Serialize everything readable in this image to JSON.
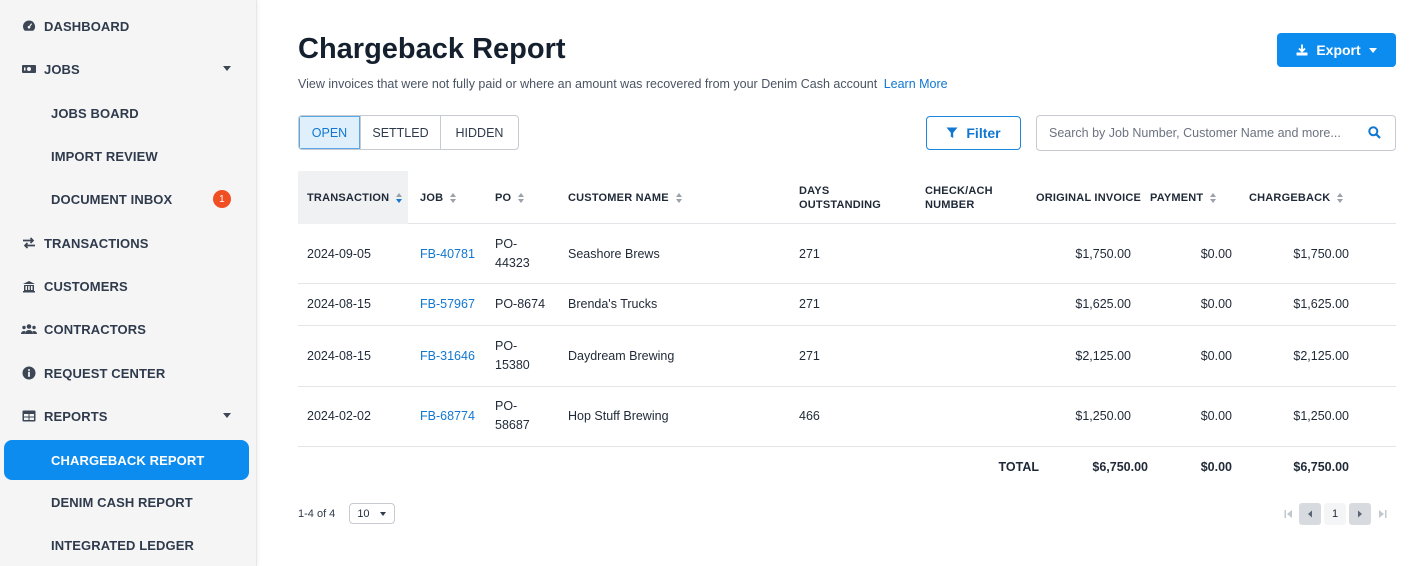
{
  "sidebar": {
    "items": [
      {
        "label": "DASHBOARD",
        "icon": "dashboard-icon"
      },
      {
        "label": "JOBS",
        "icon": "jobs-icon",
        "expandable": true
      },
      {
        "label": "JOBS BOARD"
      },
      {
        "label": "IMPORT REVIEW"
      },
      {
        "label": "DOCUMENT INBOX",
        "badge": "1"
      },
      {
        "label": "TRANSACTIONS",
        "icon": "transactions-icon"
      },
      {
        "label": "CUSTOMERS",
        "icon": "customers-icon"
      },
      {
        "label": "CONTRACTORS",
        "icon": "contractors-icon"
      },
      {
        "label": "REQUEST CENTER",
        "icon": "info-icon"
      },
      {
        "label": "REPORTS",
        "icon": "reports-icon",
        "expandable": true
      },
      {
        "label": "CHARGEBACK REPORT",
        "active": true
      },
      {
        "label": "DENIM CASH REPORT"
      },
      {
        "label": "INTEGRATED LEDGER"
      }
    ]
  },
  "page": {
    "title": "Chargeback Report",
    "subtitle": "View invoices that were not fully paid or where an amount was recovered from your Denim Cash account",
    "learn_more": "Learn More"
  },
  "export": {
    "label": "Export"
  },
  "tabs": [
    {
      "label": "OPEN",
      "active": true
    },
    {
      "label": "SETTLED"
    },
    {
      "label": "HIDDEN"
    }
  ],
  "filter": {
    "label": "Filter"
  },
  "search": {
    "placeholder": "Search by Job Number, Customer Name and more..."
  },
  "table": {
    "headers": {
      "transaction": "TRANSACTION",
      "job": "JOB",
      "po": "PO",
      "customer": "CUSTOMER NAME",
      "days_1": "DAYS",
      "days_2": "OUTSTANDING",
      "check_1": "CHECK/ACH",
      "check_2": "NUMBER",
      "original": "ORIGINAL INVOICE",
      "payment": "PAYMENT",
      "chargeback": "CHARGEBACK"
    },
    "rows": [
      {
        "transaction": "2024-09-05",
        "job": "FB-40781",
        "po_1": "PO-",
        "po_2": "44323",
        "customer": "Seashore Brews",
        "days": "271",
        "check": "",
        "original": "$1,750.00",
        "payment": "$0.00",
        "chargeback": "$1,750.00"
      },
      {
        "transaction": "2024-08-15",
        "job": "FB-57967",
        "po_1": "PO-8674",
        "po_2": "",
        "customer": "Brenda's Trucks",
        "days": "271",
        "check": "",
        "original": "$1,625.00",
        "payment": "$0.00",
        "chargeback": "$1,625.00"
      },
      {
        "transaction": "2024-08-15",
        "job": "FB-31646",
        "po_1": "PO-",
        "po_2": "15380",
        "customer": "Daydream Brewing",
        "days": "271",
        "check": "",
        "original": "$2,125.00",
        "payment": "$0.00",
        "chargeback": "$2,125.00"
      },
      {
        "transaction": "2024-02-02",
        "job": "FB-68774",
        "po_1": "PO-",
        "po_2": "58687",
        "customer": "Hop Stuff Brewing",
        "days": "466",
        "check": "",
        "original": "$1,250.00",
        "payment": "$0.00",
        "chargeback": "$1,250.00"
      }
    ],
    "total": {
      "label": "TOTAL",
      "original": "$6,750.00",
      "payment": "$0.00",
      "chargeback": "$6,750.00"
    }
  },
  "pagination": {
    "range": "1-4 of 4",
    "page_size": "10",
    "current_page": "1"
  },
  "colors": {
    "accent": "#0d8cf0",
    "link": "#1177d1",
    "badge": "#f04e23"
  }
}
